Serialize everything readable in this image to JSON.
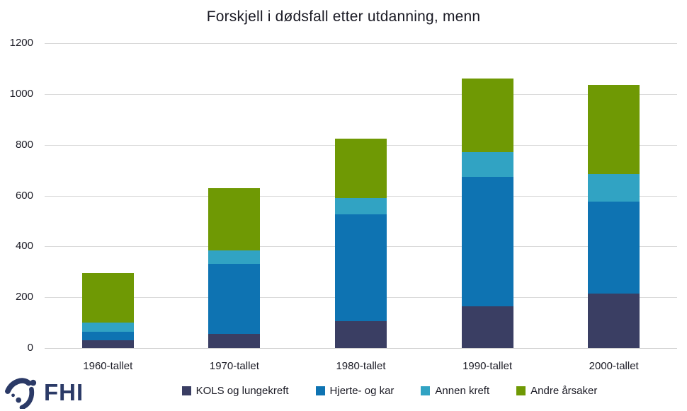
{
  "logo": {
    "label": "FHI",
    "color": "#2b3a67",
    "icon": "fhi-swoosh-logo"
  },
  "chart_data": {
    "type": "bar",
    "stacked": true,
    "title": "Forskjell i dødsfall etter utdanning, menn",
    "categories": [
      "1960-tallet",
      "1970-tallet",
      "1980-tallet",
      "1990-tallet",
      "2000-tallet"
    ],
    "series": [
      {
        "name": "KOLS og lungekreft",
        "color": "#3a3e63",
        "values": [
          30,
          55,
          105,
          165,
          215
        ]
      },
      {
        "name": "Hjerte- og kar",
        "color": "#0e73b2",
        "values": [
          35,
          275,
          420,
          510,
          360
        ]
      },
      {
        "name": "Annen kreft",
        "color": "#31a3c3",
        "values": [
          35,
          55,
          65,
          95,
          110
        ]
      },
      {
        "name": "Andre årsaker",
        "color": "#6f9904",
        "values": [
          195,
          245,
          235,
          290,
          350
        ]
      }
    ],
    "xlabel": "",
    "ylabel": "",
    "ylim": [
      0,
      1200
    ],
    "yticks": [
      0,
      200,
      400,
      600,
      800,
      1000,
      1200
    ],
    "grid": true,
    "legend_position": "bottom",
    "grid_color": "#d9d9d9",
    "axis_line_color": "#d0d0d0",
    "text_color": "#1a1a24",
    "background_color": "#ffffff"
  }
}
